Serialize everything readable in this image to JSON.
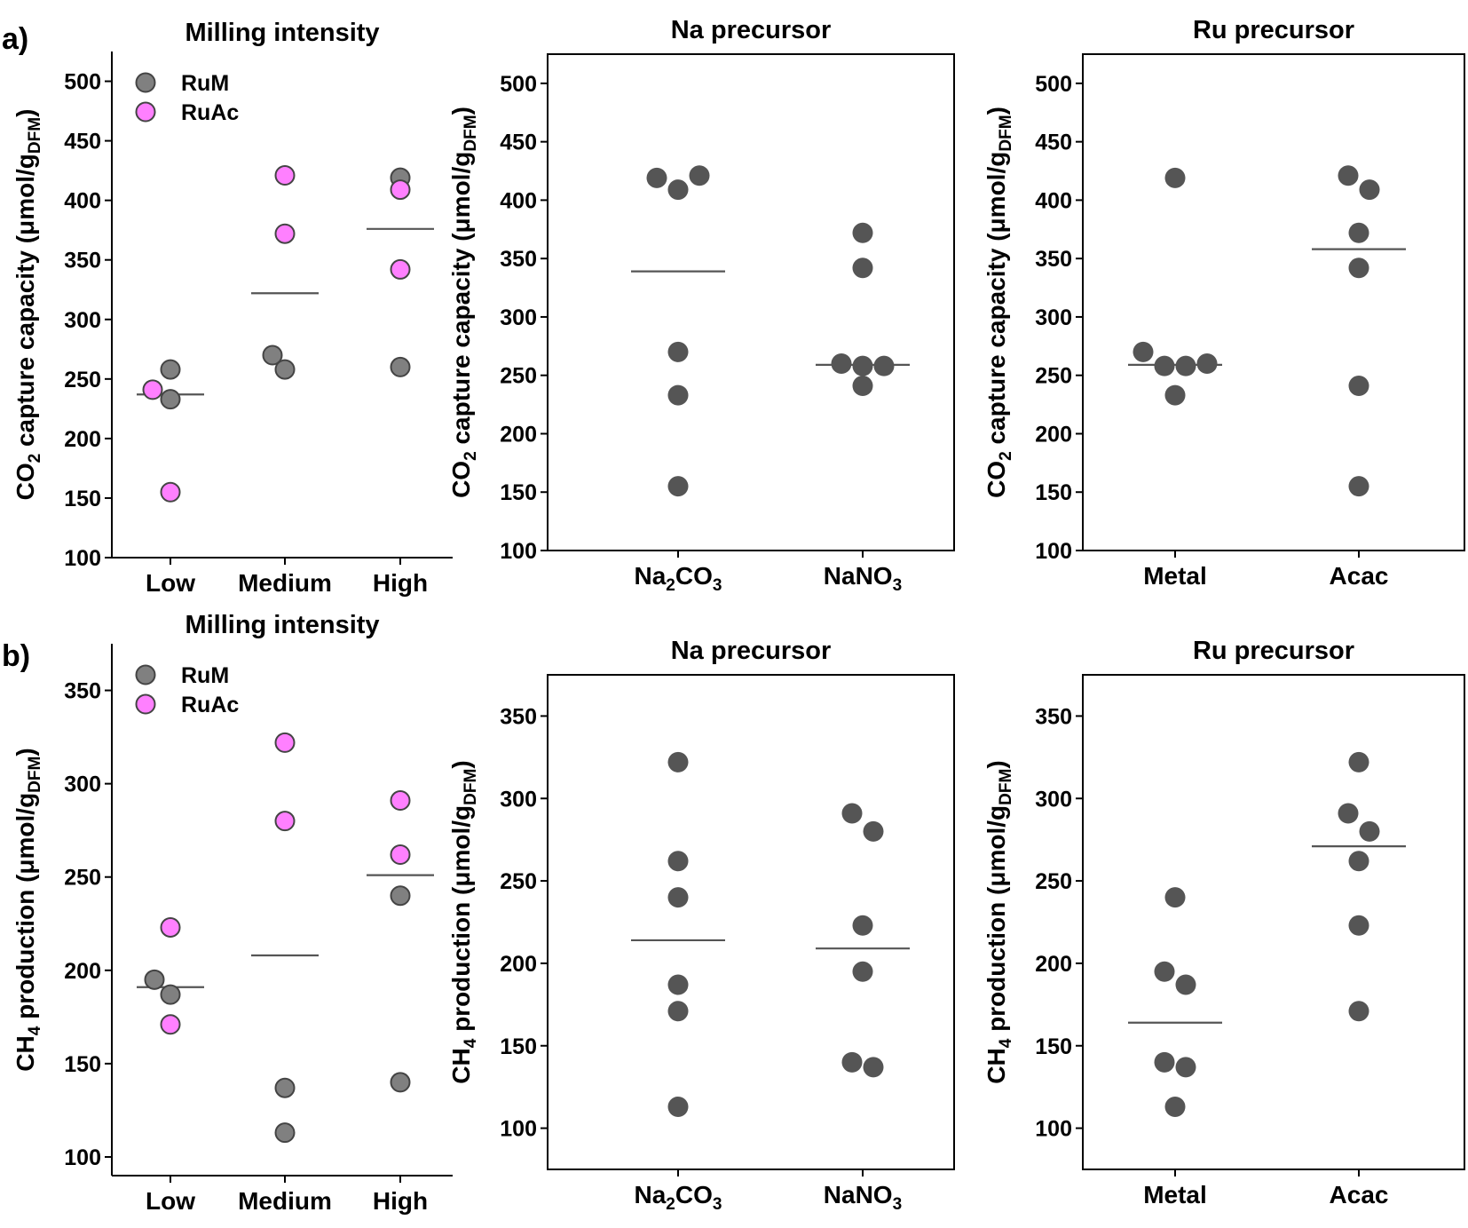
{
  "figure": {
    "panel_labels": [
      "a)",
      "b)"
    ]
  },
  "chart_data": [
    {
      "type": "scatter",
      "panel": "a)",
      "title": "Milling intensity",
      "ylabel": {
        "main": "CO",
        "sub": "2",
        "rest": " capture capacity (μmol/g",
        "sub2": "DFM",
        "close": ")"
      },
      "categories": [
        {
          "text": "Low"
        },
        {
          "text": "Medium"
        },
        {
          "text": "High"
        }
      ],
      "ylim": [
        100,
        525
      ],
      "yticks": [
        100,
        150,
        200,
        250,
        300,
        350,
        400,
        450,
        500
      ],
      "legend": {
        "position": "top-left",
        "entries": [
          {
            "name": "RuM",
            "color": "#808080"
          },
          {
            "name": "RuAc",
            "color": "#ff80ff"
          }
        ]
      },
      "series": [
        {
          "name": "RuM",
          "color": "#808080",
          "points": [
            [
              0,
              258
            ],
            [
              0,
              233
            ],
            [
              1,
              270
            ],
            [
              1,
              258
            ],
            [
              2,
              419
            ],
            [
              2,
              260
            ]
          ]
        },
        {
          "name": "RuAc",
          "color": "#ff80ff",
          "points": [
            [
              0,
              241
            ],
            [
              0,
              155
            ],
            [
              1,
              421
            ],
            [
              1,
              372
            ],
            [
              2,
              409
            ],
            [
              2,
              342
            ]
          ]
        }
      ],
      "means": [
        237,
        322,
        376
      ]
    },
    {
      "type": "scatter",
      "title": "Na precursor",
      "ylabel": {
        "main": "CO",
        "sub": "2",
        "rest": " capture capacity (μmol/g",
        "sub2": "DFM",
        "close": ")"
      },
      "categories": [
        {
          "text": "Na",
          "sub": "2",
          "rest": "CO",
          "sub2": "3"
        },
        {
          "text": "NaNO",
          "sub": "3"
        }
      ],
      "ylim": [
        100,
        525
      ],
      "yticks": [
        100,
        150,
        200,
        250,
        300,
        350,
        400,
        450,
        500
      ],
      "series": [
        {
          "color": "#555555",
          "points": [
            [
              0,
              419
            ],
            [
              0,
              409
            ],
            [
              0,
              421
            ],
            [
              0,
              270
            ],
            [
              0,
              233
            ],
            [
              0,
              155
            ],
            [
              1,
              372
            ],
            [
              1,
              342
            ],
            [
              1,
              260
            ],
            [
              1,
              258
            ],
            [
              1,
              258
            ],
            [
              1,
              241
            ]
          ]
        }
      ],
      "means": [
        339,
        259
      ]
    },
    {
      "type": "scatter",
      "title": "Ru precursor",
      "ylabel": {
        "main": "CO",
        "sub": "2",
        "rest": " capture capacity (μmol/g",
        "sub2": "DFM",
        "close": ")"
      },
      "categories": [
        {
          "text": "Metal"
        },
        {
          "text": "Acac"
        }
      ],
      "ylim": [
        100,
        525
      ],
      "yticks": [
        100,
        150,
        200,
        250,
        300,
        350,
        400,
        450,
        500
      ],
      "series": [
        {
          "color": "#555555",
          "points": [
            [
              0,
              419
            ],
            [
              0,
              270
            ],
            [
              0,
              258
            ],
            [
              0,
              258
            ],
            [
              0,
              260
            ],
            [
              0,
              233
            ],
            [
              1,
              421
            ],
            [
              1,
              409
            ],
            [
              1,
              372
            ],
            [
              1,
              342
            ],
            [
              1,
              241
            ],
            [
              1,
              155
            ]
          ]
        }
      ],
      "means": [
        259,
        358
      ]
    },
    {
      "type": "scatter",
      "panel": "b)",
      "title": "Milling intensity",
      "ylabel": {
        "main": "CH",
        "sub": "4",
        "rest": " production (μmol/g",
        "sub2": "DFM",
        "close": ")"
      },
      "categories": [
        {
          "text": "Low"
        },
        {
          "text": "Medium"
        },
        {
          "text": "High"
        }
      ],
      "ylim": [
        90,
        375
      ],
      "yticks": [
        100,
        150,
        200,
        250,
        300,
        350
      ],
      "legend": {
        "position": "top-left",
        "entries": [
          {
            "name": "RuM",
            "color": "#808080"
          },
          {
            "name": "RuAc",
            "color": "#ff80ff"
          }
        ]
      },
      "series": [
        {
          "name": "RuM",
          "color": "#808080",
          "points": [
            [
              0,
              195
            ],
            [
              0,
              187
            ],
            [
              1,
              137
            ],
            [
              1,
              113
            ],
            [
              2,
              240
            ],
            [
              2,
              140
            ]
          ]
        },
        {
          "name": "RuAc",
          "color": "#ff80ff",
          "points": [
            [
              0,
              223
            ],
            [
              0,
              171
            ],
            [
              1,
              322
            ],
            [
              1,
              280
            ],
            [
              2,
              291
            ],
            [
              2,
              262
            ]
          ]
        }
      ],
      "means": [
        191,
        208,
        251
      ]
    },
    {
      "type": "scatter",
      "title": "Na precursor",
      "ylabel": {
        "main": "CH",
        "sub": "4",
        "rest": " production (μmol/g",
        "sub2": "DFM",
        "close": ")"
      },
      "categories": [
        {
          "text": "Na",
          "sub": "2",
          "rest": "CO",
          "sub2": "3"
        },
        {
          "text": "NaNO",
          "sub": "3"
        }
      ],
      "ylim": [
        75,
        375
      ],
      "yticks": [
        100,
        150,
        200,
        250,
        300,
        350
      ],
      "series": [
        {
          "color": "#555555",
          "points": [
            [
              0,
              322
            ],
            [
              0,
              262
            ],
            [
              0,
              240
            ],
            [
              0,
              187
            ],
            [
              0,
              171
            ],
            [
              0,
              113
            ],
            [
              1,
              291
            ],
            [
              1,
              280
            ],
            [
              1,
              223
            ],
            [
              1,
              195
            ],
            [
              1,
              140
            ],
            [
              1,
              137
            ]
          ]
        }
      ],
      "means": [
        214,
        209
      ]
    },
    {
      "type": "scatter",
      "title": "Ru precursor",
      "ylabel": {
        "main": "CH",
        "sub": "4",
        "rest": " production (μmol/g",
        "sub2": "DFM",
        "close": ")"
      },
      "categories": [
        {
          "text": "Metal"
        },
        {
          "text": "Acac"
        }
      ],
      "ylim": [
        75,
        375
      ],
      "yticks": [
        100,
        150,
        200,
        250,
        300,
        350
      ],
      "series": [
        {
          "color": "#555555",
          "points": [
            [
              0,
              240
            ],
            [
              0,
              195
            ],
            [
              0,
              187
            ],
            [
              0,
              140
            ],
            [
              0,
              137
            ],
            [
              0,
              113
            ],
            [
              1,
              322
            ],
            [
              1,
              291
            ],
            [
              1,
              280
            ],
            [
              1,
              262
            ],
            [
              1,
              223
            ],
            [
              1,
              171
            ]
          ]
        }
      ],
      "means": [
        164,
        271
      ]
    }
  ]
}
